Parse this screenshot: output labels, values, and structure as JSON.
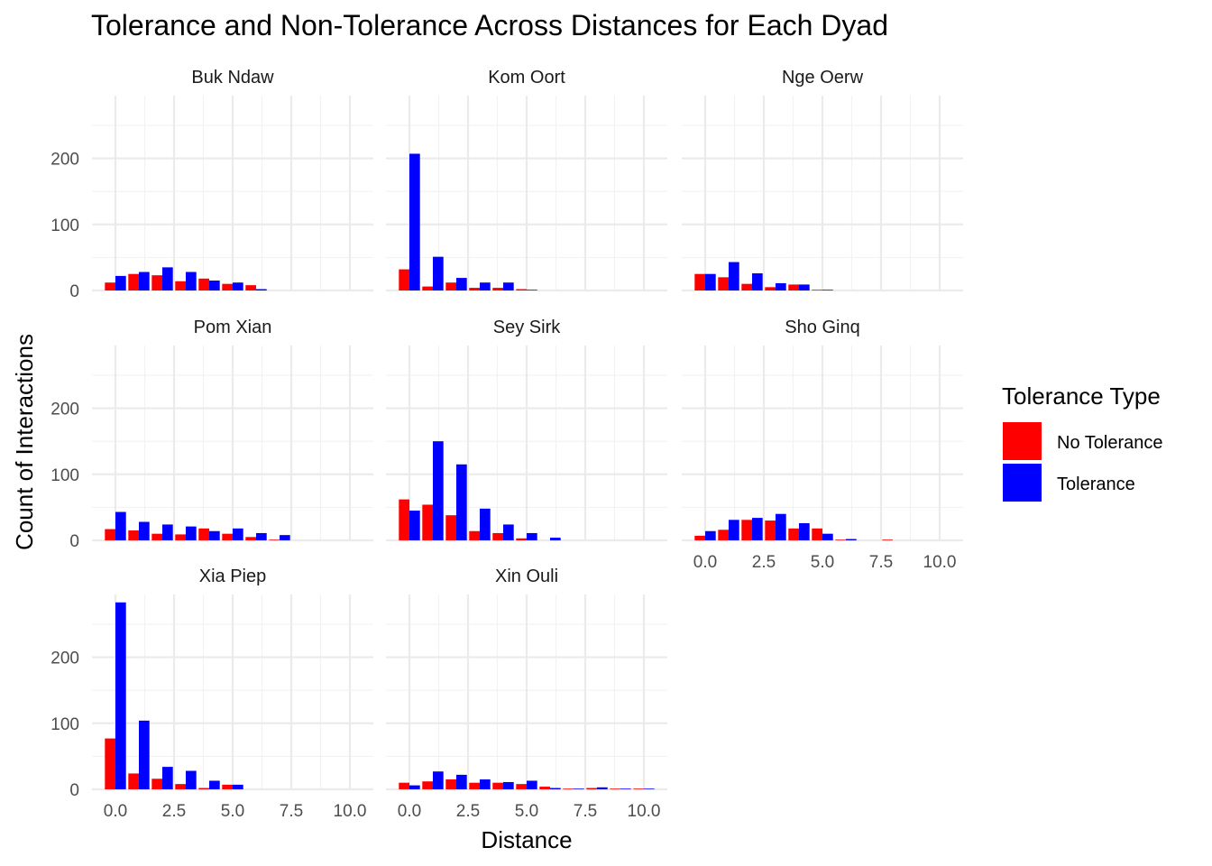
{
  "chart_data": {
    "type": "bar",
    "title": "Tolerance and Non-Tolerance Across Distances for Each Dyad",
    "xlabel": "Distance",
    "ylabel": "Count of Interactions",
    "xlim": [
      -1,
      11
    ],
    "ylim": [
      0,
      295
    ],
    "x_ticks": [
      "0.0",
      "2.5",
      "5.0",
      "7.5",
      "10.0"
    ],
    "y_ticks": [
      "0",
      "100",
      "200"
    ],
    "grid": true,
    "legend": {
      "title": "Tolerance Type",
      "placement": "right",
      "entries": [
        {
          "name": "No Tolerance",
          "color": "#ff0000"
        },
        {
          "name": "Tolerance",
          "color": "#0000ff"
        }
      ]
    },
    "series_names": [
      "No Tolerance",
      "Tolerance"
    ],
    "colors": {
      "No Tolerance": "#ff0000",
      "Tolerance": "#0000ff"
    },
    "x": [
      0,
      1,
      2,
      3,
      4,
      5,
      6,
      7,
      8,
      9,
      10
    ],
    "panels": [
      {
        "name": "Buk Ndaw",
        "no_tolerance": [
          12,
          25,
          23,
          14,
          18,
          10,
          8,
          0,
          0,
          0,
          0
        ],
        "tolerance": [
          22,
          28,
          35,
          28,
          15,
          12,
          2,
          0,
          0,
          0,
          0
        ]
      },
      {
        "name": "Kom Oort",
        "no_tolerance": [
          32,
          6,
          12,
          4,
          4,
          2,
          0,
          0,
          0,
          0,
          0
        ],
        "tolerance": [
          207,
          51,
          19,
          12,
          12,
          1,
          0,
          0,
          0,
          0,
          0
        ]
      },
      {
        "name": "Nge Oerw",
        "no_tolerance": [
          25,
          20,
          10,
          5,
          9,
          1,
          0,
          0,
          0,
          0,
          0
        ],
        "tolerance": [
          25,
          43,
          26,
          11,
          9,
          1,
          0,
          0,
          0,
          0,
          0
        ]
      },
      {
        "name": "Pom Xian",
        "no_tolerance": [
          17,
          15,
          10,
          9,
          18,
          10,
          5,
          1,
          0,
          0,
          0
        ],
        "tolerance": [
          43,
          28,
          24,
          21,
          14,
          18,
          11,
          8,
          0,
          0,
          0
        ]
      },
      {
        "name": "Sey Sirk",
        "no_tolerance": [
          62,
          54,
          38,
          14,
          11,
          3,
          0,
          0,
          0,
          0,
          0
        ],
        "tolerance": [
          45,
          150,
          115,
          48,
          24,
          11,
          4,
          0,
          0,
          0,
          0
        ]
      },
      {
        "name": "Sho Ginq",
        "no_tolerance": [
          7,
          16,
          31,
          30,
          18,
          18,
          1,
          0,
          1,
          0,
          0
        ],
        "tolerance": [
          14,
          31,
          34,
          40,
          26,
          10,
          2,
          0,
          0,
          0,
          0
        ]
      },
      {
        "name": "Xia Piep",
        "no_tolerance": [
          77,
          24,
          16,
          8,
          2,
          7,
          0,
          0,
          0,
          0,
          0
        ],
        "tolerance": [
          283,
          104,
          34,
          28,
          13,
          7,
          0,
          0,
          0,
          0,
          0
        ]
      },
      {
        "name": "Xin Ouli",
        "no_tolerance": [
          10,
          12,
          15,
          10,
          10,
          8,
          4,
          1,
          2,
          1,
          1
        ],
        "tolerance": [
          6,
          27,
          22,
          15,
          11,
          13,
          2,
          1,
          3,
          1,
          1
        ]
      }
    ]
  }
}
